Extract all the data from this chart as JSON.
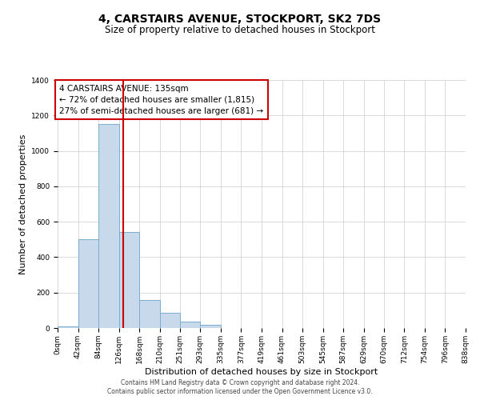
{
  "title": "4, CARSTAIRS AVENUE, STOCKPORT, SK2 7DS",
  "subtitle": "Size of property relative to detached houses in Stockport",
  "xlabel": "Distribution of detached houses by size in Stockport",
  "ylabel": "Number of detached properties",
  "bar_edges": [
    0,
    42,
    84,
    126,
    168,
    210,
    251,
    293,
    335,
    377,
    419,
    461,
    503,
    545,
    587,
    629,
    670,
    712,
    754,
    796,
    838
  ],
  "bar_heights": [
    10,
    500,
    1150,
    540,
    160,
    85,
    35,
    20,
    0,
    0,
    0,
    0,
    0,
    0,
    0,
    0,
    0,
    0,
    0,
    0
  ],
  "tick_labels": [
    "0sqm",
    "42sqm",
    "84sqm",
    "126sqm",
    "168sqm",
    "210sqm",
    "251sqm",
    "293sqm",
    "335sqm",
    "377sqm",
    "419sqm",
    "461sqm",
    "503sqm",
    "545sqm",
    "587sqm",
    "629sqm",
    "670sqm",
    "712sqm",
    "754sqm",
    "796sqm",
    "838sqm"
  ],
  "bar_color": "#c9d9ec",
  "bar_edge_color": "#7aadcf",
  "vline_x": 135,
  "vline_color": "#cc0000",
  "ylim": [
    0,
    1400
  ],
  "yticks": [
    0,
    200,
    400,
    600,
    800,
    1000,
    1200,
    1400
  ],
  "annotation_title": "4 CARSTAIRS AVENUE: 135sqm",
  "annotation_line1": "← 72% of detached houses are smaller (1,815)",
  "annotation_line2": "27% of semi-detached houses are larger (681) →",
  "annotation_box_color": "#ffffff",
  "annotation_box_edge_color": "#cc0000",
  "footer1": "Contains HM Land Registry data © Crown copyright and database right 2024.",
  "footer2": "Contains public sector information licensed under the Open Government Licence v3.0.",
  "background_color": "#ffffff",
  "grid_color": "#cccccc",
  "title_fontsize": 10,
  "subtitle_fontsize": 8.5,
  "axis_label_fontsize": 8,
  "tick_fontsize": 6.5,
  "annotation_fontsize": 7.5,
  "footer_fontsize": 5.5
}
